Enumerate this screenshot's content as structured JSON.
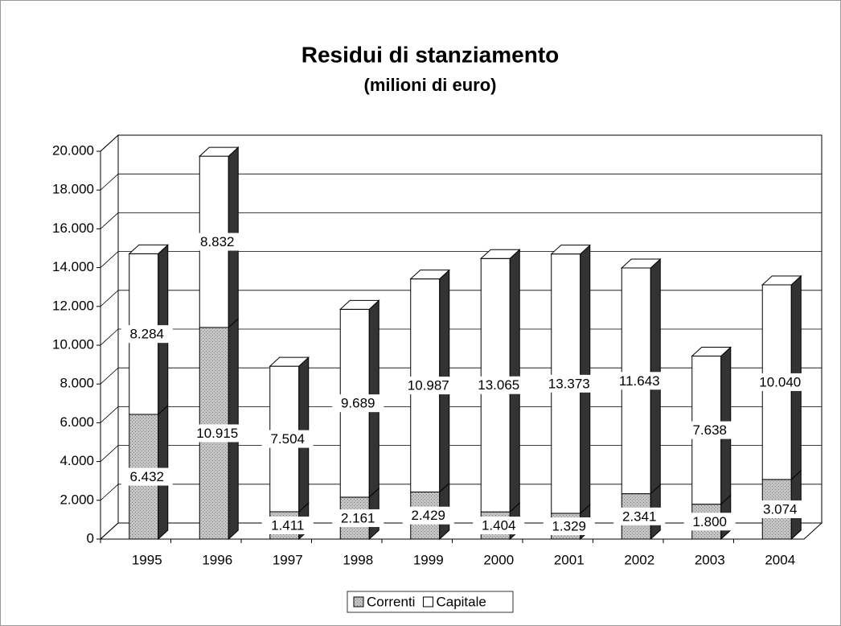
{
  "chart_data": {
    "type": "bar3d_stacked",
    "title": "Residui di stanziamento",
    "subtitle": "(milioni di euro)",
    "categories": [
      "1995",
      "1996",
      "1997",
      "1998",
      "1999",
      "2000",
      "2001",
      "2002",
      "2003",
      "2004"
    ],
    "series": [
      {
        "name": "Correnti",
        "color": "#b8b8b8",
        "values": [
          6432,
          10915,
          1411,
          2161,
          2429,
          1404,
          1329,
          2341,
          1800,
          3074
        ],
        "value_labels": [
          "6.432",
          "10.915",
          "1.411",
          "2.161",
          "2.429",
          "1.404",
          "1.329",
          "2.341",
          "1.800",
          "3.074"
        ]
      },
      {
        "name": "Capitale",
        "color": "#ffffff",
        "values": [
          8284,
          8832,
          7504,
          9689,
          10987,
          13065,
          13373,
          11643,
          7638,
          10040
        ],
        "value_labels": [
          "8.284",
          "8.832",
          "7.504",
          "9.689",
          "10.987",
          "13.065",
          "13.373",
          "11.643",
          "7.638",
          "10.040"
        ]
      }
    ],
    "ylim": [
      0,
      20000
    ],
    "yticks": [
      0,
      {
        "value": 2000,
        "label": "2.000"
      },
      {
        "value": 4000,
        "label": "4.000"
      },
      {
        "value": 6000,
        "label": "6.000"
      },
      {
        "value": 8000,
        "label": "8.000"
      },
      {
        "value": 10000,
        "label": "10.000"
      },
      {
        "value": 12000,
        "label": "12.000"
      },
      {
        "value": 14000,
        "label": "14.000"
      },
      {
        "value": 16000,
        "label": "16.000"
      },
      {
        "value": 18000,
        "label": "18.000"
      },
      {
        "value": 20000,
        "label": "20.000"
      }
    ],
    "grid": true,
    "legend": "bottom"
  }
}
